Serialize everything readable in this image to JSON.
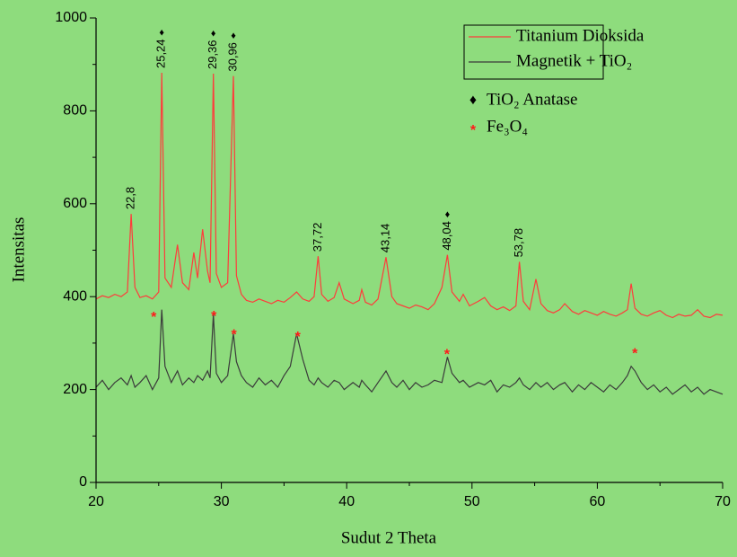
{
  "chart_data": {
    "type": "line",
    "xlabel": "Sudut 2 Theta",
    "ylabel": "Intensitas",
    "xlim": [
      20,
      70
    ],
    "xticks": [
      20,
      30,
      40,
      50,
      60,
      70
    ],
    "xminorticks": [
      25,
      35,
      45,
      55,
      65
    ],
    "ylim": [
      0,
      1000
    ],
    "yticks": [
      0,
      200,
      400,
      600,
      800,
      1000
    ],
    "yminorticks": [
      100,
      300,
      500,
      700,
      900
    ],
    "background": "#8edc7d",
    "legend": "upper right",
    "x": [
      20,
      20.5,
      21,
      21.5,
      22,
      22.5,
      22.8,
      23.1,
      23.5,
      24,
      24.5,
      25,
      25.24,
      25.5,
      26,
      26.5,
      26.9,
      27.4,
      27.8,
      28.1,
      28.5,
      28.9,
      29.1,
      29.36,
      29.6,
      30,
      30.5,
      30.96,
      31.2,
      31.6,
      32,
      32.5,
      33,
      33.5,
      34,
      34.5,
      35,
      35.5,
      36,
      36.5,
      37,
      37.4,
      37.72,
      38,
      38.5,
      39,
      39.4,
      39.8,
      40.5,
      41,
      41.2,
      41.5,
      42,
      42.5,
      43.14,
      43.6,
      44,
      44.5,
      45,
      45.5,
      46,
      46.5,
      47,
      47.6,
      48.04,
      48.4,
      49,
      49.3,
      49.8,
      50.5,
      51,
      51.5,
      52,
      52.5,
      53,
      53.5,
      53.78,
      54.1,
      54.6,
      55.1,
      55.5,
      56,
      56.5,
      57,
      57.4,
      58,
      58.5,
      59,
      59.5,
      60,
      60.5,
      61,
      61.5,
      62,
      62.4,
      62.7,
      63,
      63.5,
      64,
      64.5,
      65,
      65.5,
      66,
      66.5,
      67,
      67.5,
      68,
      68.5,
      69,
      69.5,
      70
    ],
    "series": [
      {
        "name": "Titanium Dioksida",
        "color": "#ff3b3b",
        "values": [
          395,
          402,
          398,
          405,
          400,
          410,
          578,
          420,
          398,
          402,
          395,
          410,
          882,
          440,
          420,
          512,
          430,
          415,
          495,
          440,
          545,
          455,
          430,
          880,
          450,
          420,
          430,
          875,
          445,
          405,
          392,
          388,
          395,
          390,
          385,
          392,
          388,
          398,
          410,
          395,
          390,
          400,
          487,
          405,
          390,
          398,
          430,
          395,
          385,
          392,
          415,
          388,
          382,
          395,
          485,
          400,
          385,
          380,
          375,
          382,
          378,
          372,
          385,
          420,
          490,
          410,
          390,
          405,
          380,
          390,
          398,
          380,
          372,
          378,
          370,
          380,
          475,
          390,
          372,
          438,
          385,
          370,
          365,
          372,
          385,
          368,
          362,
          370,
          365,
          360,
          368,
          362,
          358,
          365,
          372,
          428,
          375,
          362,
          358,
          365,
          370,
          360,
          355,
          362,
          358,
          360,
          372,
          358,
          355,
          362,
          360
        ]
      },
      {
        "name": "Magnetik + TiO₂",
        "color": "#3a3a3a",
        "values": [
          205,
          220,
          200,
          215,
          225,
          210,
          230,
          205,
          215,
          230,
          200,
          225,
          372,
          250,
          215,
          240,
          210,
          225,
          215,
          230,
          220,
          240,
          225,
          362,
          235,
          215,
          230,
          320,
          260,
          230,
          215,
          205,
          225,
          210,
          220,
          205,
          230,
          250,
          320,
          265,
          220,
          210,
          225,
          215,
          205,
          220,
          215,
          200,
          215,
          205,
          220,
          210,
          195,
          215,
          240,
          215,
          205,
          220,
          200,
          215,
          205,
          210,
          220,
          215,
          270,
          235,
          215,
          220,
          205,
          215,
          210,
          220,
          195,
          210,
          205,
          215,
          225,
          210,
          200,
          215,
          205,
          215,
          200,
          210,
          215,
          195,
          210,
          200,
          215,
          205,
          195,
          210,
          200,
          215,
          230,
          250,
          240,
          215,
          200,
          210,
          195,
          205,
          190,
          200,
          210,
          195,
          205,
          190,
          200,
          195,
          190
        ]
      }
    ],
    "annotations": [
      {
        "x": 22.8,
        "y": 578,
        "label": "22,8"
      },
      {
        "x": 25.24,
        "y": 882,
        "label": "25,24",
        "symbol": "♦"
      },
      {
        "x": 29.36,
        "y": 880,
        "label": "29,36",
        "symbol": "♦"
      },
      {
        "x": 30.96,
        "y": 875,
        "label": "30,96",
        "symbol": "♦"
      },
      {
        "x": 37.72,
        "y": 487,
        "label": "37,72"
      },
      {
        "x": 43.14,
        "y": 485,
        "label": "43,14"
      },
      {
        "x": 48.04,
        "y": 490,
        "label": "48,04",
        "symbol": "♦"
      },
      {
        "x": 53.78,
        "y": 475,
        "label": "53,78"
      }
    ],
    "phase_markers": {
      "symbol": "*",
      "color": "#ff1a1a",
      "points": [
        {
          "x": 24.6,
          "y": 360
        },
        {
          "x": 29.4,
          "y": 362
        },
        {
          "x": 31.0,
          "y": 322
        },
        {
          "x": 36.1,
          "y": 318
        },
        {
          "x": 48.0,
          "y": 280
        },
        {
          "x": 63.0,
          "y": 282
        }
      ]
    },
    "phase_legend": [
      {
        "symbol": "♦",
        "color": "#000000",
        "label": "TiO₂ Anatase"
      },
      {
        "symbol": "*",
        "color": "#ff1a1a",
        "label": "Fe₃O₄"
      }
    ]
  }
}
